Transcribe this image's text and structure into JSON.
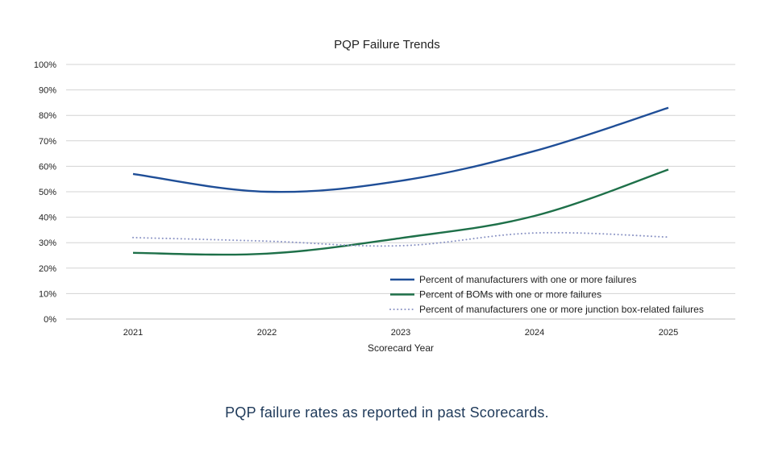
{
  "chart_data": {
    "type": "line",
    "title": "PQP Failure Trends",
    "xlabel": "Scorecard Year",
    "ylabel": "",
    "categories": [
      "2021",
      "2022",
      "2023",
      "2024",
      "2025"
    ],
    "ylim": [
      0,
      100
    ],
    "yticks": [
      "0%",
      "10%",
      "20%",
      "30%",
      "40%",
      "50%",
      "60%",
      "70%",
      "80%",
      "90%",
      "100%"
    ],
    "grid": true,
    "legend_position": "bottom-right",
    "series": [
      {
        "name": "Percent of manufacturers with one or more failures",
        "values": [
          57,
          50,
          54.3,
          66,
          83
        ],
        "color": "#1f4e97",
        "style": "solid"
      },
      {
        "name": "Percent of BOMs with one or more failures",
        "values": [
          26,
          25.7,
          31.8,
          40.5,
          58.7
        ],
        "color": "#1e7049",
        "style": "solid"
      },
      {
        "name": "Percent of manufacturers one or more junction box-related failures",
        "values": [
          32,
          30.6,
          28.8,
          33.8,
          32.2
        ],
        "color": "#8a93c4",
        "style": "dotted"
      }
    ]
  },
  "caption": "PQP failure rates as reported in past Scorecards."
}
